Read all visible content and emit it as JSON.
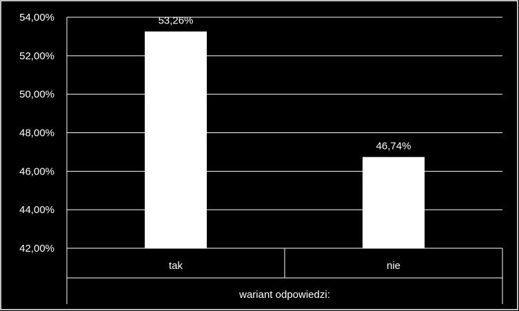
{
  "chart_data": {
    "type": "bar",
    "categories": [
      "tak",
      "nie"
    ],
    "values": [
      53.26,
      46.74
    ],
    "data_labels": [
      "53,26%",
      "46,74%"
    ],
    "xlabel": "wariant odpowiedzi:",
    "ylabel": "",
    "ylim": [
      42,
      54
    ],
    "yticks": [
      42,
      44,
      46,
      48,
      50,
      52,
      54
    ],
    "ytick_labels": [
      "42,00%",
      "44,00%",
      "46,00%",
      "48,00%",
      "50,00%",
      "52,00%",
      "54,00%"
    ],
    "grid": true,
    "legend": "none",
    "colors": {
      "background": "#000000",
      "bar": "#ffffff",
      "grid": "#ffffff",
      "text": "#ffffff"
    }
  }
}
